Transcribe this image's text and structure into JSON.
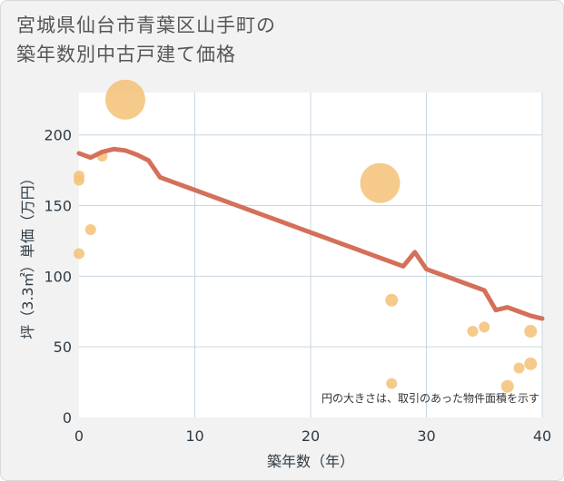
{
  "title_lines": [
    "宮城県仙台市青葉区山手町の",
    "築年数別中古戸建て価格"
  ],
  "note": "円の大きさは、取引のあった物件面積を示す",
  "colors": {
    "line": "#d4705a",
    "bubble": "#f5c175",
    "grid": "#c9d6e3",
    "tick_text": "#2f3b45",
    "plot_bg": "#ffffff"
  },
  "chart_data": {
    "type": "scatter",
    "title": "宮城県仙台市青葉区山手町の築年数別中古戸建て価格",
    "xlabel": "築年数（年）",
    "ylabel": "坪（3.3㎡）単価（万円）",
    "xlim": [
      0,
      40
    ],
    "ylim": [
      0,
      230
    ],
    "xticks": [
      0,
      10,
      20,
      30,
      40
    ],
    "yticks": [
      0,
      50,
      100,
      150,
      200
    ],
    "grid": true,
    "series": [
      {
        "kind": "bubble",
        "points": [
          {
            "x": 0,
            "y": 171,
            "size": 6
          },
          {
            "x": 0,
            "y": 168,
            "size": 6
          },
          {
            "x": 0,
            "y": 116,
            "size": 6
          },
          {
            "x": 1,
            "y": 133,
            "size": 6
          },
          {
            "x": 2,
            "y": 185,
            "size": 6
          },
          {
            "x": 4,
            "y": 225,
            "size": 22
          },
          {
            "x": 26,
            "y": 166,
            "size": 22
          },
          {
            "x": 27,
            "y": 83,
            "size": 7
          },
          {
            "x": 27,
            "y": 24,
            "size": 6
          },
          {
            "x": 34,
            "y": 61,
            "size": 6
          },
          {
            "x": 35,
            "y": 64,
            "size": 6
          },
          {
            "x": 37,
            "y": 22,
            "size": 7
          },
          {
            "x": 38,
            "y": 35,
            "size": 6
          },
          {
            "x": 39,
            "y": 61,
            "size": 7
          },
          {
            "x": 39,
            "y": 38,
            "size": 7
          }
        ]
      },
      {
        "kind": "line",
        "x": [
          0,
          1,
          2,
          3,
          4,
          5,
          6,
          7,
          8,
          9,
          10,
          11,
          12,
          13,
          14,
          15,
          16,
          17,
          18,
          19,
          20,
          21,
          22,
          23,
          24,
          25,
          26,
          27,
          28,
          29,
          30,
          31,
          32,
          33,
          34,
          35,
          36,
          37,
          38,
          39,
          40
        ],
        "y": [
          187,
          184,
          188,
          190,
          189,
          186,
          182,
          170,
          167,
          164,
          161,
          158,
          155,
          152,
          149,
          146,
          143,
          140,
          137,
          134,
          131,
          128,
          125,
          122,
          119,
          116,
          113,
          110,
          107,
          117,
          105,
          102,
          99,
          96,
          93,
          90,
          76,
          78,
          75,
          72,
          70
        ]
      }
    ]
  }
}
